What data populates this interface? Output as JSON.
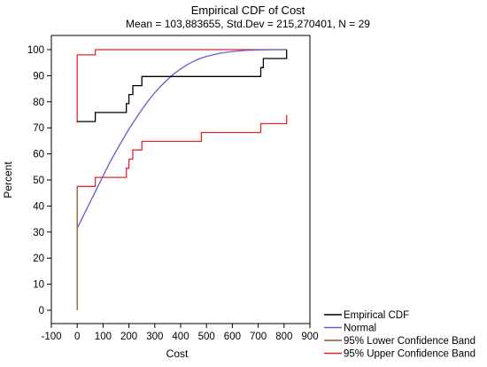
{
  "chart_data": {
    "type": "line",
    "title": "Empirical CDF of Cost",
    "subtitle": "Mean = 103,883655, Std.Dev = 215,270401, N = 29",
    "xlabel": "Cost",
    "ylabel": "Percent",
    "xlim": [
      -100,
      900
    ],
    "ylim": [
      0,
      100
    ],
    "x_ticks": [
      -100,
      0,
      100,
      200,
      300,
      400,
      500,
      600,
      700,
      800,
      900
    ],
    "y_ticks": [
      0,
      10,
      20,
      30,
      40,
      50,
      60,
      70,
      80,
      90,
      100
    ],
    "legend_position": "bottom-right-outside",
    "series": [
      {
        "name": "Empirical CDF",
        "color": "#000000",
        "step": true,
        "points": [
          [
            0,
            72.4
          ],
          [
            70,
            72.4
          ],
          [
            70,
            75.9
          ],
          [
            190,
            75.9
          ],
          [
            190,
            79.3
          ],
          [
            200,
            79.3
          ],
          [
            200,
            82.8
          ],
          [
            215,
            82.8
          ],
          [
            215,
            86.2
          ],
          [
            250,
            86.2
          ],
          [
            250,
            89.7
          ],
          [
            710,
            89.7
          ],
          [
            710,
            93.1
          ],
          [
            720,
            93.1
          ],
          [
            720,
            96.6
          ],
          [
            810,
            96.6
          ],
          [
            810,
            100
          ]
        ]
      },
      {
        "name": "Normal",
        "color": "#6a5acd",
        "step": false,
        "points": [
          [
            0,
            31.5
          ],
          [
            25,
            36.5
          ],
          [
            50,
            41.5
          ],
          [
            75,
            46.5
          ],
          [
            100,
            51.5
          ],
          [
            125,
            56.5
          ],
          [
            150,
            61.0
          ],
          [
            175,
            65.3
          ],
          [
            200,
            69.5
          ],
          [
            225,
            73.3
          ],
          [
            250,
            77.0
          ],
          [
            275,
            80.4
          ],
          [
            300,
            83.5
          ],
          [
            325,
            86.2
          ],
          [
            350,
            88.6
          ],
          [
            375,
            90.8
          ],
          [
            400,
            92.6
          ],
          [
            425,
            94.2
          ],
          [
            450,
            95.5
          ],
          [
            475,
            96.6
          ],
          [
            500,
            97.4
          ],
          [
            550,
            98.6
          ],
          [
            600,
            99.3
          ],
          [
            650,
            99.7
          ],
          [
            700,
            99.9
          ],
          [
            750,
            100
          ],
          [
            810,
            100
          ]
        ]
      },
      {
        "name": "95% Lower Confidence Band",
        "color": "#8b5a2b",
        "step": true,
        "points": [
          [
            0,
            0
          ],
          [
            0,
            47.5
          ]
        ]
      },
      {
        "name": "95% Upper Confidence Band",
        "color": "#e8262a",
        "step": true,
        "points": [
          [
            0,
            47.5
          ],
          [
            70,
            47.5
          ],
          [
            70,
            51
          ],
          [
            190,
            51
          ],
          [
            190,
            54.5
          ],
          [
            200,
            54.5
          ],
          [
            200,
            58
          ],
          [
            215,
            58
          ],
          [
            215,
            61.5
          ],
          [
            250,
            61.5
          ],
          [
            250,
            64.8
          ],
          [
            480,
            64.8
          ],
          [
            480,
            68.2
          ],
          [
            710,
            68.2
          ],
          [
            710,
            71.6
          ],
          [
            810,
            71.6
          ],
          [
            810,
            75
          ]
        ]
      },
      {
        "name": "",
        "color": "#e8262a",
        "step": true,
        "points": [
          [
            0,
            72
          ],
          [
            0,
            98
          ],
          [
            70,
            98
          ],
          [
            70,
            100
          ],
          [
            810,
            100
          ]
        ]
      }
    ]
  }
}
